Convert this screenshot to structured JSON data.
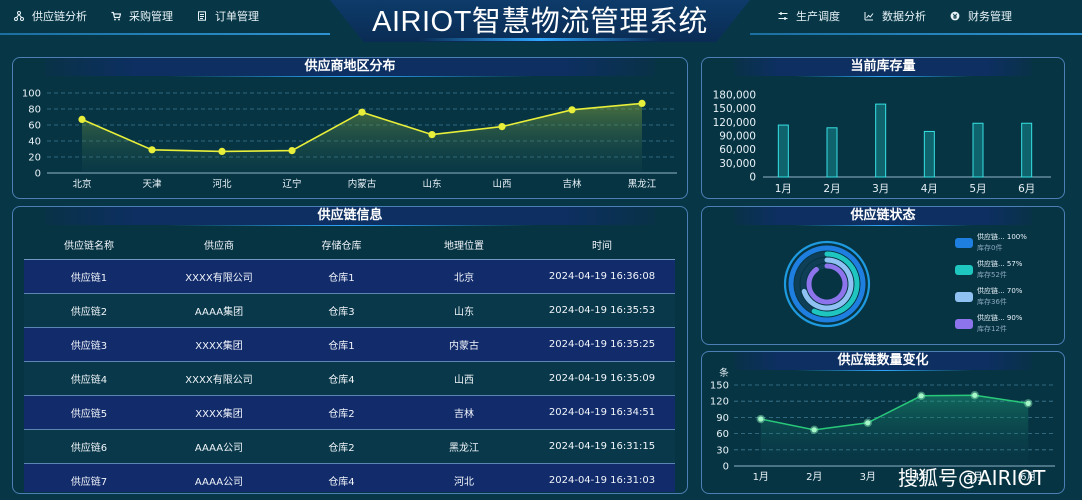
{
  "header": {
    "title": "AIRIOT智慧物流管理系统",
    "nav_left": [
      {
        "label": "供应链分析",
        "icon": "network-icon"
      },
      {
        "label": "采购管理",
        "icon": "cart-icon"
      },
      {
        "label": "订单管理",
        "icon": "document-icon"
      }
    ],
    "nav_right": [
      {
        "label": "生产调度",
        "icon": "sliders-icon"
      },
      {
        "label": "数据分析",
        "icon": "chart-icon"
      },
      {
        "label": "财务管理",
        "icon": "money-icon"
      }
    ]
  },
  "panels": {
    "region": {
      "title": "供应商地区分布"
    },
    "inventory": {
      "title": "当前库存量"
    },
    "info": {
      "title": "供应链信息"
    },
    "status": {
      "title": "供应链状态"
    },
    "count": {
      "title": "供应链数量变化"
    }
  },
  "table": {
    "headers": [
      "供应链名称",
      "供应商",
      "存储仓库",
      "地理位置",
      "时间"
    ],
    "rows": [
      [
        "供应链1",
        "XXXX有限公司",
        "仓库1",
        "北京",
        "2024-04-19 16:36:08"
      ],
      [
        "供应链2",
        "AAAA集团",
        "仓库3",
        "山东",
        "2024-04-19 16:35:53"
      ],
      [
        "供应链3",
        "XXXX集团",
        "仓库1",
        "内蒙古",
        "2024-04-19 16:35:25"
      ],
      [
        "供应链4",
        "XXXX有限公司",
        "仓库4",
        "山西",
        "2024-04-19 16:35:09"
      ],
      [
        "供应链5",
        "XXXX集团",
        "仓库2",
        "吉林",
        "2024-04-19 16:34:51"
      ],
      [
        "供应链6",
        "AAAA公司",
        "仓库2",
        "黑龙江",
        "2024-04-19 16:31:15"
      ],
      [
        "供应链7",
        "AAAA公司",
        "仓库4",
        "河北",
        "2024-04-19 16:31:03"
      ]
    ]
  },
  "status_legend": [
    {
      "name": "供应链... 100%",
      "sub": "库存0件",
      "color": "#1f7fe0"
    },
    {
      "name": "供应链... 57%",
      "sub": "库存52件",
      "color": "#1fc6c0"
    },
    {
      "name": "供应链... 70%",
      "sub": "库存36件",
      "color": "#8fc2f2"
    },
    {
      "name": "供应链... 90%",
      "sub": "库存12件",
      "color": "#8d74ec"
    }
  ],
  "watermark": "搜狐号@AIRIOT",
  "chart_data": [
    {
      "type": "line",
      "title": "供应商地区分布",
      "categories": [
        "北京",
        "天津",
        "河北",
        "辽宁",
        "内蒙古",
        "山东",
        "山西",
        "吉林",
        "黑龙江"
      ],
      "values": [
        67,
        29,
        27,
        28,
        76,
        48,
        58,
        79,
        87
      ],
      "ylim": [
        0,
        100
      ],
      "yticks": [
        0,
        20,
        40,
        60,
        80,
        100
      ],
      "color": "#e8ef3a",
      "grid": true
    },
    {
      "type": "bar",
      "title": "当前库存量",
      "categories": [
        "1月",
        "2月",
        "3月",
        "4月",
        "5月",
        "6月"
      ],
      "values": [
        114000,
        108000,
        160000,
        100000,
        118000,
        118000
      ],
      "ylim": [
        0,
        180000
      ],
      "yticks": [
        "0",
        "30,000",
        "60,000",
        "90,000",
        "120,000",
        "150,000",
        "180,000"
      ],
      "color": "#1fbdbd"
    },
    {
      "type": "line",
      "title": "供应链数量变化",
      "ylabel": "条",
      "categories": [
        "1月",
        "2月",
        "3月",
        "4月",
        "5月",
        "6月"
      ],
      "values": [
        87,
        67,
        80,
        130,
        131,
        116
      ],
      "ylim": [
        0,
        150
      ],
      "yticks": [
        0,
        30,
        60,
        90,
        120,
        150
      ],
      "color": "#29c97a",
      "grid": true
    },
    {
      "type": "pie",
      "title": "供应链状态",
      "categories": [
        "供应链... 100%",
        "供应链... 57%",
        "供应链... 70%",
        "供应链... 90%"
      ],
      "values": [
        100,
        57,
        70,
        90
      ]
    }
  ]
}
